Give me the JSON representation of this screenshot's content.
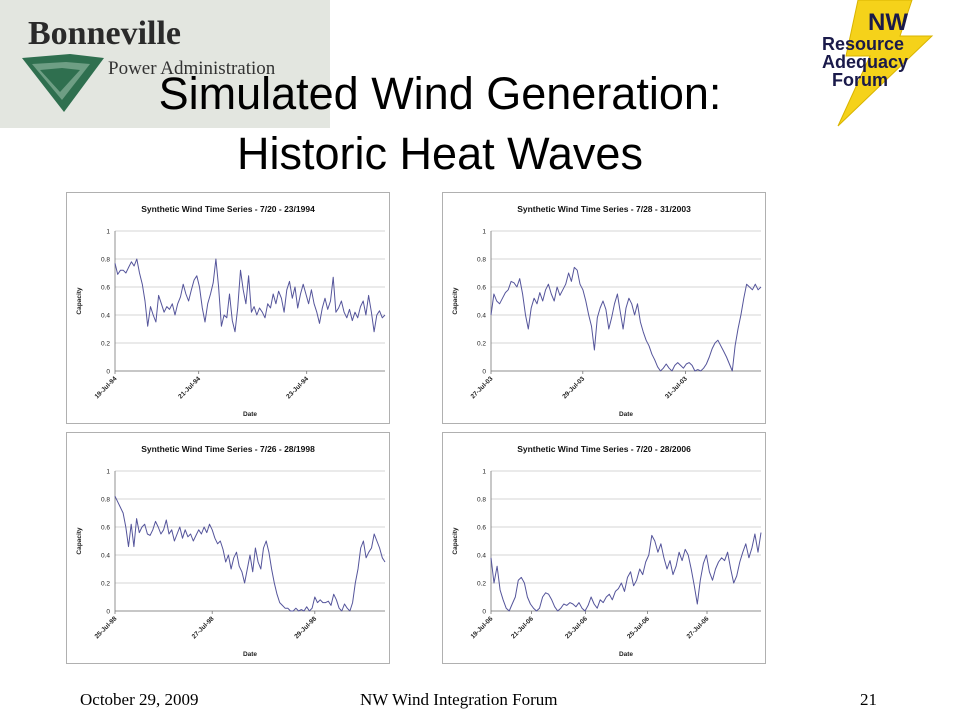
{
  "slide": {
    "title_line1": "Simulated Wind Generation:",
    "title_line2": "Historic Heat Waves"
  },
  "logos": {
    "left": {
      "line1": "Bonneville",
      "line2": "Power Administration"
    },
    "right": {
      "line1": "NW",
      "line2": "Resource",
      "line3": "Adequacy",
      "line4": "Forum"
    }
  },
  "footer": {
    "date": "October 29, 2009",
    "center": "NW Wind Integration Forum",
    "page": "21"
  },
  "colors": {
    "line": "#55559b",
    "grid": "#c8c8c8",
    "bpa_green": "#2f6f4f",
    "nw_yellow": "#f5d21a",
    "nw_text": "#1a1a4a"
  },
  "chart_data": [
    {
      "type": "line",
      "title": "Synthetic Wind Time Series - 7/20 - 23/1994",
      "xlabel": "Date",
      "ylabel": "Capacity",
      "ylim": [
        0,
        1
      ],
      "yticks": [
        "0",
        "0.2",
        "0.4",
        "0.6",
        "0.8",
        "1"
      ],
      "xticks": [
        {
          "label": "19-Jul-94",
          "at": 0
        },
        {
          "label": "21-Jul-94",
          "at": 0.31
        },
        {
          "label": "23-Jul-94",
          "at": 0.71
        }
      ],
      "grid": true,
      "values": [
        0.77,
        0.69,
        0.72,
        0.72,
        0.7,
        0.74,
        0.78,
        0.75,
        0.8,
        0.7,
        0.62,
        0.5,
        0.32,
        0.46,
        0.4,
        0.35,
        0.54,
        0.48,
        0.42,
        0.46,
        0.44,
        0.48,
        0.4,
        0.48,
        0.53,
        0.62,
        0.55,
        0.5,
        0.58,
        0.65,
        0.68,
        0.6,
        0.45,
        0.35,
        0.48,
        0.55,
        0.63,
        0.8,
        0.6,
        0.32,
        0.4,
        0.38,
        0.55,
        0.36,
        0.28,
        0.45,
        0.72,
        0.58,
        0.48,
        0.68,
        0.42,
        0.46,
        0.4,
        0.45,
        0.42,
        0.38,
        0.48,
        0.45,
        0.55,
        0.48,
        0.57,
        0.52,
        0.42,
        0.58,
        0.64,
        0.52,
        0.6,
        0.45,
        0.55,
        0.62,
        0.55,
        0.48,
        0.58,
        0.48,
        0.42,
        0.34,
        0.45,
        0.52,
        0.44,
        0.5,
        0.67,
        0.42,
        0.45,
        0.5,
        0.42,
        0.38,
        0.44,
        0.36,
        0.42,
        0.38,
        0.46,
        0.5,
        0.4,
        0.54,
        0.42,
        0.28,
        0.4,
        0.43,
        0.38,
        0.4
      ]
    },
    {
      "type": "line",
      "title": "Synthetic Wind Time Series - 7/28 - 31/2003",
      "xlabel": "Date",
      "ylabel": "Capacity",
      "ylim": [
        0,
        1
      ],
      "yticks": [
        "0",
        "0.2",
        "0.4",
        "0.6",
        "0.8",
        "1"
      ],
      "xticks": [
        {
          "label": "27-Jul-03",
          "at": 0
        },
        {
          "label": "29-Jul-03",
          "at": 0.34
        },
        {
          "label": "31-Jul-03",
          "at": 0.72
        }
      ],
      "grid": true,
      "values": [
        0.4,
        0.55,
        0.5,
        0.48,
        0.52,
        0.56,
        0.58,
        0.64,
        0.63,
        0.6,
        0.66,
        0.55,
        0.4,
        0.3,
        0.45,
        0.52,
        0.48,
        0.56,
        0.5,
        0.58,
        0.62,
        0.55,
        0.5,
        0.6,
        0.54,
        0.58,
        0.62,
        0.7,
        0.64,
        0.74,
        0.72,
        0.62,
        0.58,
        0.5,
        0.4,
        0.32,
        0.15,
        0.38,
        0.45,
        0.5,
        0.44,
        0.3,
        0.38,
        0.48,
        0.55,
        0.42,
        0.3,
        0.45,
        0.52,
        0.48,
        0.4,
        0.48,
        0.35,
        0.28,
        0.22,
        0.18,
        0.12,
        0.08,
        0.03,
        0.0,
        0.02,
        0.05,
        0.02,
        0.0,
        0.04,
        0.06,
        0.04,
        0.02,
        0.05,
        0.06,
        0.04,
        0.0,
        0.01,
        0.0,
        0.02,
        0.05,
        0.1,
        0.16,
        0.2,
        0.22,
        0.18,
        0.14,
        0.1,
        0.05,
        0.0,
        0.18,
        0.3,
        0.4,
        0.52,
        0.62,
        0.6,
        0.58,
        0.62,
        0.58,
        0.6
      ]
    },
    {
      "type": "line",
      "title": "Synthetic Wind Time Series - 7/26 - 28/1998",
      "xlabel": "Date",
      "ylabel": "Capacity",
      "ylim": [
        0,
        1
      ],
      "yticks": [
        "0",
        "0.2",
        "0.4",
        "0.6",
        "0.8",
        "1"
      ],
      "xticks": [
        {
          "label": "25-Jul-98",
          "at": 0
        },
        {
          "label": "27-Jul-98",
          "at": 0.36
        },
        {
          "label": "29-Jul-98",
          "at": 0.74
        }
      ],
      "grid": true,
      "values": [
        0.82,
        0.78,
        0.74,
        0.7,
        0.6,
        0.46,
        0.62,
        0.46,
        0.66,
        0.56,
        0.6,
        0.62,
        0.55,
        0.54,
        0.58,
        0.64,
        0.6,
        0.55,
        0.58,
        0.65,
        0.55,
        0.58,
        0.5,
        0.55,
        0.6,
        0.52,
        0.58,
        0.53,
        0.55,
        0.5,
        0.54,
        0.58,
        0.55,
        0.6,
        0.56,
        0.62,
        0.58,
        0.52,
        0.48,
        0.5,
        0.44,
        0.35,
        0.4,
        0.3,
        0.38,
        0.42,
        0.32,
        0.28,
        0.2,
        0.3,
        0.4,
        0.28,
        0.45,
        0.35,
        0.3,
        0.45,
        0.5,
        0.42,
        0.3,
        0.2,
        0.12,
        0.06,
        0.04,
        0.02,
        0.02,
        0.0,
        0.0,
        0.02,
        0.0,
        0.01,
        0.0,
        0.03,
        0.0,
        0.02,
        0.1,
        0.06,
        0.08,
        0.06,
        0.06,
        0.07,
        0.04,
        0.12,
        0.08,
        0.02,
        0.0,
        0.05,
        0.02,
        0.0,
        0.06,
        0.2,
        0.3,
        0.45,
        0.5,
        0.38,
        0.42,
        0.45,
        0.55,
        0.5,
        0.45,
        0.38,
        0.35
      ]
    },
    {
      "type": "line",
      "title": "Synthetic Wind Time Series - 7/20 - 28/2006",
      "xlabel": "Date",
      "ylabel": "Capacity",
      "ylim": [
        0,
        1
      ],
      "yticks": [
        "0",
        "0.2",
        "0.4",
        "0.6",
        "0.8",
        "1"
      ],
      "xticks": [
        {
          "label": "19-Jul-06",
          "at": 0
        },
        {
          "label": "21-Jul-06",
          "at": 0.15
        },
        {
          "label": "23-Jul-06",
          "at": 0.35
        },
        {
          "label": "25-Jul-06",
          "at": 0.58
        },
        {
          "label": "27-Jul-06",
          "at": 0.8
        }
      ],
      "grid": true,
      "values": [
        0.38,
        0.2,
        0.32,
        0.15,
        0.08,
        0.02,
        0.0,
        0.05,
        0.1,
        0.22,
        0.24,
        0.2,
        0.1,
        0.05,
        0.02,
        0.0,
        0.02,
        0.1,
        0.13,
        0.12,
        0.08,
        0.03,
        0.0,
        0.02,
        0.05,
        0.04,
        0.06,
        0.05,
        0.03,
        0.06,
        0.02,
        0.0,
        0.04,
        0.1,
        0.05,
        0.02,
        0.08,
        0.06,
        0.1,
        0.12,
        0.08,
        0.14,
        0.16,
        0.2,
        0.14,
        0.24,
        0.28,
        0.18,
        0.22,
        0.3,
        0.26,
        0.35,
        0.4,
        0.54,
        0.5,
        0.42,
        0.48,
        0.38,
        0.3,
        0.36,
        0.26,
        0.32,
        0.42,
        0.36,
        0.44,
        0.4,
        0.3,
        0.18,
        0.05,
        0.22,
        0.34,
        0.4,
        0.28,
        0.22,
        0.3,
        0.35,
        0.38,
        0.36,
        0.42,
        0.3,
        0.2,
        0.25,
        0.35,
        0.42,
        0.48,
        0.38,
        0.45,
        0.55,
        0.42,
        0.56
      ]
    }
  ]
}
